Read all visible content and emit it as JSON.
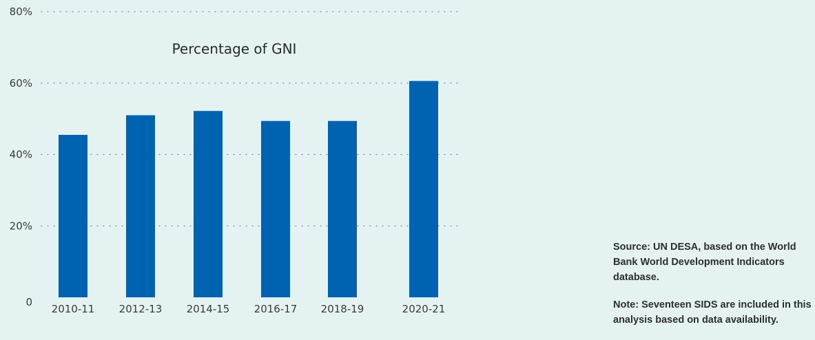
{
  "chart_data": {
    "type": "bar",
    "title": "Percentage of GNI",
    "xlabel": "",
    "ylabel": "",
    "categories": [
      "2010-11",
      "2012-13",
      "2014-15",
      "2016-17",
      "2018-19",
      "2020-21"
    ],
    "values": [
      45.5,
      51.0,
      52.2,
      49.4,
      49.4,
      60.6
    ],
    "ylim": [
      0,
      80
    ],
    "yticks": [
      0,
      20,
      40,
      60,
      80
    ],
    "ytick_labels": [
      "0",
      "20%",
      "40%",
      "60%",
      "80%"
    ],
    "grid": true,
    "bar_color": "#0063b1"
  },
  "notes": {
    "source": "Source: UN DESA, based on the World Bank World Development Indicators database.",
    "note": "Note: Seventeen SIDS are included in this analysis based on data availability."
  }
}
